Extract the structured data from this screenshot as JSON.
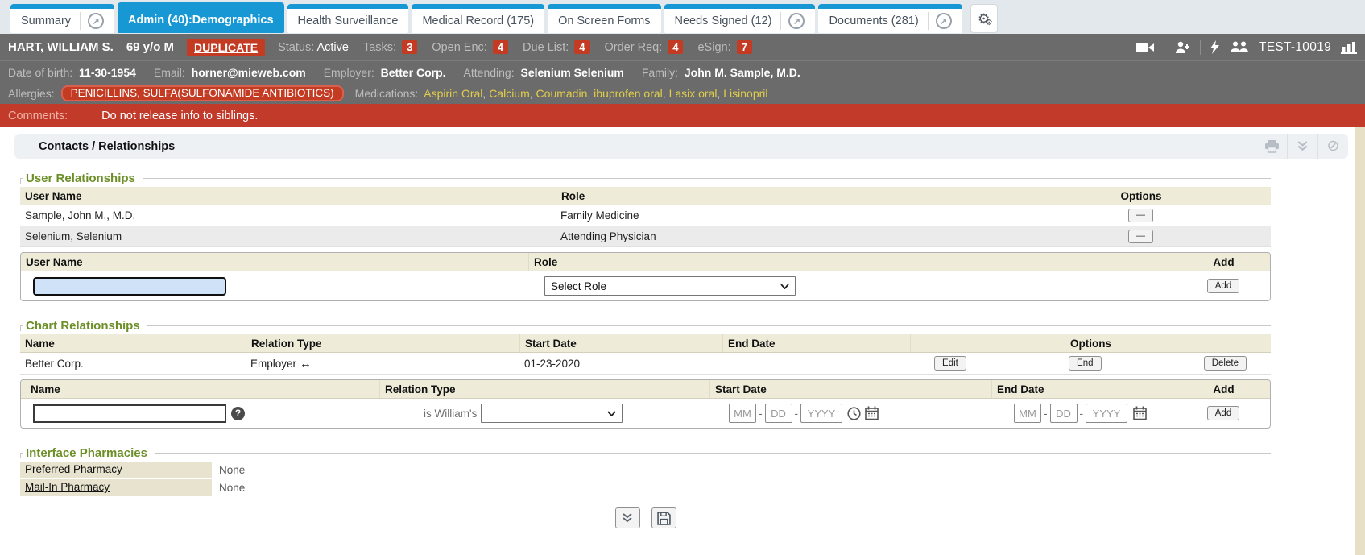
{
  "colors": {
    "accent_blue": "#1798d5",
    "alert_red": "#c13a2a",
    "medication_yellow": "#e2ce4a",
    "heading_green": "#6d8f28"
  },
  "tab_bar": {
    "tabs": [
      {
        "label": "Summary"
      },
      {
        "label": "Admin (40):Demographics"
      },
      {
        "label": "Health Surveillance"
      },
      {
        "label": "Medical Record (175)"
      },
      {
        "label": "On Screen Forms"
      },
      {
        "label": "Needs Signed (12)"
      },
      {
        "label": "Documents (281)"
      }
    ]
  },
  "patient_bar": {
    "name": "HART, WILLIAM S.",
    "age_sex": "69 y/o M",
    "duplicate_label": "DUPLICATE",
    "status_label": "Status:",
    "status_value": "Active",
    "counters": [
      {
        "label": "Tasks:",
        "value": "3"
      },
      {
        "label": "Open Enc:",
        "value": "4"
      },
      {
        "label": "Due List:",
        "value": "4"
      },
      {
        "label": "Order Req:",
        "value": "4"
      },
      {
        "label": "eSign:",
        "value": "7"
      }
    ],
    "chart_id": "TEST-10019"
  },
  "demographics_bar": {
    "items": [
      {
        "label": "Date of birth:",
        "value": "11-30-1954"
      },
      {
        "label": "Email:",
        "value": "horner@mieweb.com"
      },
      {
        "label": "Employer:",
        "value": "Better Corp."
      },
      {
        "label": "Attending:",
        "value": "Selenium Selenium"
      },
      {
        "label": "Family:",
        "value": "John M. Sample, M.D."
      }
    ]
  },
  "allergy_bar": {
    "allergies_label": "Allergies:",
    "allergies_value": "PENICILLINS, SULFA(SULFONAMIDE ANTIBIOTICS)",
    "medications_label": "Medications:",
    "medications": [
      "Aspirin Oral",
      "Calcium",
      "Coumadin",
      "ibuprofen oral",
      "Lasix oral",
      "Lisinopril"
    ]
  },
  "comments_bar": {
    "label": "Comments:",
    "text": "Do not release info to siblings."
  },
  "content": {
    "title": "Contacts / Relationships",
    "user_relationships": {
      "heading": "User Relationships",
      "columns": [
        "User Name",
        "Role",
        "Options"
      ],
      "rows": [
        {
          "user_name": "Sample, John M., M.D.",
          "role": "Family Medicine",
          "remove_label": "—"
        },
        {
          "user_name": "Selenium, Selenium",
          "role": "Attending Physician",
          "remove_label": "—"
        }
      ],
      "add_form": {
        "columns": [
          "User Name",
          "Role",
          "Add"
        ],
        "user_name_value": "",
        "role_select_value": "Select Role",
        "add_button_label": "Add"
      }
    },
    "chart_relationships": {
      "heading": "Chart Relationships",
      "columns": [
        "Name",
        "Relation Type",
        "Start Date",
        "End Date",
        "Options"
      ],
      "rows": [
        {
          "name": "Better Corp.",
          "relation_type": "Employer",
          "relation_arrow": "↔",
          "start_date": "01-23-2020",
          "end_date": "",
          "edit_label": "Edit",
          "end_label": "End",
          "delete_label": "Delete"
        }
      ],
      "add_form": {
        "columns": [
          "Name",
          "Relation Type",
          "Start Date",
          "End Date",
          "Add"
        ],
        "name_value": "",
        "help_icon_label": "?",
        "relation_prefix": "is William's",
        "relation_select_value": "",
        "mm_placeholder": "MM",
        "dd_placeholder": "DD",
        "yyyy_placeholder": "YYYY",
        "date_separator": "-",
        "add_button_label": "Add"
      }
    },
    "interface_pharmacies": {
      "heading": "Interface Pharmacies",
      "rows": [
        {
          "label": "Preferred Pharmacy",
          "value": "None"
        },
        {
          "label": "Mail-In Pharmacy",
          "value": "None"
        }
      ]
    }
  }
}
